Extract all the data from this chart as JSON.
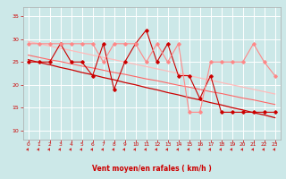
{
  "x": [
    0,
    1,
    2,
    3,
    4,
    5,
    6,
    7,
    8,
    9,
    10,
    11,
    12,
    13,
    14,
    15,
    16,
    17,
    18,
    19,
    20,
    21,
    22,
    23
  ],
  "series": [
    {
      "name": "line1_dark_red",
      "color": "#cc0000",
      "lw": 0.8,
      "marker": "D",
      "markersize": 1.8,
      "y": [
        25,
        25,
        25,
        29,
        25,
        25,
        22,
        29,
        19,
        25,
        29,
        32,
        25,
        29,
        22,
        22,
        17,
        22,
        14,
        14,
        14,
        14,
        14,
        14
      ]
    },
    {
      "name": "line2_light_red",
      "color": "#ff8888",
      "lw": 0.8,
      "marker": "D",
      "markersize": 1.8,
      "y": [
        29,
        29,
        29,
        29,
        29,
        29,
        29,
        25,
        29,
        29,
        29,
        25,
        29,
        25,
        29,
        14,
        14,
        25,
        25,
        25,
        25,
        29,
        25,
        22
      ]
    },
    {
      "name": "trend_dark1",
      "color": "#cc0000",
      "lw": 0.9,
      "marker": null,
      "y": [
        25.5,
        24.9,
        24.4,
        23.8,
        23.3,
        22.7,
        22.2,
        21.6,
        21.1,
        20.5,
        20.0,
        19.4,
        18.9,
        18.3,
        17.8,
        17.2,
        16.7,
        16.1,
        15.6,
        15.0,
        14.5,
        13.9,
        13.4,
        12.8
      ]
    },
    {
      "name": "trend_light1",
      "color": "#ffbbbb",
      "lw": 0.9,
      "marker": null,
      "y": [
        29.5,
        29.0,
        28.5,
        28.0,
        27.5,
        27.0,
        26.5,
        26.0,
        25.5,
        25.0,
        24.5,
        24.0,
        23.5,
        23.0,
        22.5,
        22.0,
        21.5,
        21.0,
        20.5,
        20.0,
        19.5,
        19.0,
        18.5,
        18.0
      ]
    },
    {
      "name": "trend_mid",
      "color": "#ff6666",
      "lw": 0.8,
      "marker": null,
      "y": [
        26.5,
        26.0,
        25.5,
        25.1,
        24.6,
        24.1,
        23.7,
        23.2,
        22.7,
        22.3,
        21.8,
        21.3,
        20.9,
        20.4,
        19.9,
        19.5,
        19.0,
        18.5,
        18.1,
        17.6,
        17.1,
        16.7,
        16.2,
        15.7
      ]
    }
  ],
  "xlabel": "Vent moyen/en rafales ( km/h )",
  "ylim": [
    8,
    37
  ],
  "xlim": [
    -0.5,
    23.5
  ],
  "yticks": [
    10,
    15,
    20,
    25,
    30,
    35
  ],
  "xticks": [
    0,
    1,
    2,
    3,
    4,
    5,
    6,
    7,
    8,
    9,
    10,
    11,
    12,
    13,
    14,
    15,
    16,
    17,
    18,
    19,
    20,
    21,
    22,
    23
  ],
  "bg_color": "#cce8e8",
  "grid_color": "#ffffff",
  "xlabel_color": "#cc0000",
  "tick_color": "#cc0000",
  "arrow_color": "#cc0000"
}
